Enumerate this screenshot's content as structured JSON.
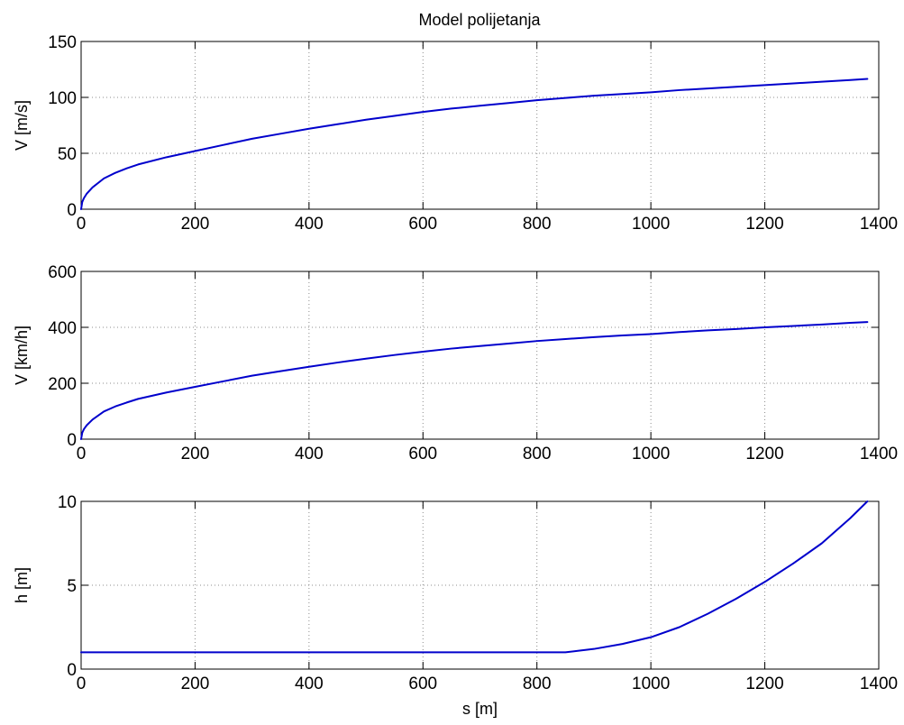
{
  "figure": {
    "title": "Model polijetanja",
    "xlabel": "s [m]"
  },
  "colors": {
    "line": "#0000cc",
    "axes": "#000000",
    "grid": "#8c8c8c",
    "background": "#ffffff"
  },
  "chart_data": [
    {
      "type": "line",
      "title": "Model polijetanja",
      "xlabel": "",
      "ylabel": "V  [m/s]",
      "xlim": [
        0,
        1400
      ],
      "ylim": [
        0,
        150
      ],
      "xticks": [
        0,
        200,
        400,
        600,
        800,
        1000,
        1200,
        1400
      ],
      "yticks": [
        0,
        50,
        100,
        150
      ],
      "grid": true,
      "series": [
        {
          "x": [
            0,
            2,
            5,
            10,
            20,
            40,
            60,
            80,
            100,
            150,
            200,
            250,
            300,
            350,
            400,
            450,
            500,
            550,
            600,
            650,
            700,
            750,
            800,
            850,
            900,
            950,
            1000,
            1050,
            1100,
            1150,
            1200,
            1250,
            1300,
            1350,
            1380
          ],
          "y": [
            0,
            6.5,
            10,
            14,
            19.5,
            27.5,
            32.5,
            36.5,
            40,
            46.5,
            52,
            57.5,
            63,
            67.5,
            72,
            76,
            80,
            83.5,
            87,
            90,
            92.5,
            95,
            97.5,
            99.5,
            101.5,
            103,
            104.5,
            106.5,
            108,
            109.5,
            111,
            112.5,
            114,
            115.5,
            116.5
          ]
        }
      ]
    },
    {
      "type": "line",
      "title": "",
      "xlabel": "",
      "ylabel": "V  [km/h]",
      "xlim": [
        0,
        1400
      ],
      "ylim": [
        0,
        600
      ],
      "xticks": [
        0,
        200,
        400,
        600,
        800,
        1000,
        1200,
        1400
      ],
      "yticks": [
        0,
        200,
        400,
        600
      ],
      "grid": true,
      "series": [
        {
          "x": [
            0,
            2,
            5,
            10,
            20,
            40,
            60,
            80,
            100,
            150,
            200,
            250,
            300,
            350,
            400,
            450,
            500,
            550,
            600,
            650,
            700,
            750,
            800,
            850,
            900,
            950,
            1000,
            1050,
            1100,
            1150,
            1200,
            1250,
            1300,
            1350,
            1380
          ],
          "y": [
            0,
            23,
            36,
            50,
            70,
            99,
            117,
            131,
            144,
            167,
            187,
            207,
            227,
            243,
            259,
            274,
            288,
            301,
            313,
            324,
            333,
            342,
            351,
            358,
            365,
            371,
            376,
            383,
            389,
            394,
            400,
            405,
            410,
            416,
            419
          ]
        }
      ]
    },
    {
      "type": "line",
      "title": "",
      "xlabel": "s [m]",
      "ylabel": "h [m]",
      "xlim": [
        0,
        1400
      ],
      "ylim": [
        0,
        10
      ],
      "xticks": [
        0,
        200,
        400,
        600,
        800,
        1000,
        1200,
        1400
      ],
      "yticks": [
        0,
        5,
        10
      ],
      "grid": true,
      "series": [
        {
          "x": [
            0,
            200,
            400,
            600,
            800,
            830,
            850,
            875,
            900,
            950,
            1000,
            1050,
            1100,
            1150,
            1200,
            1250,
            1300,
            1350,
            1380
          ],
          "y": [
            1,
            1,
            1,
            1,
            1,
            1,
            1,
            1.1,
            1.2,
            1.5,
            1.9,
            2.5,
            3.3,
            4.2,
            5.2,
            6.3,
            7.5,
            9,
            10
          ]
        }
      ]
    }
  ]
}
